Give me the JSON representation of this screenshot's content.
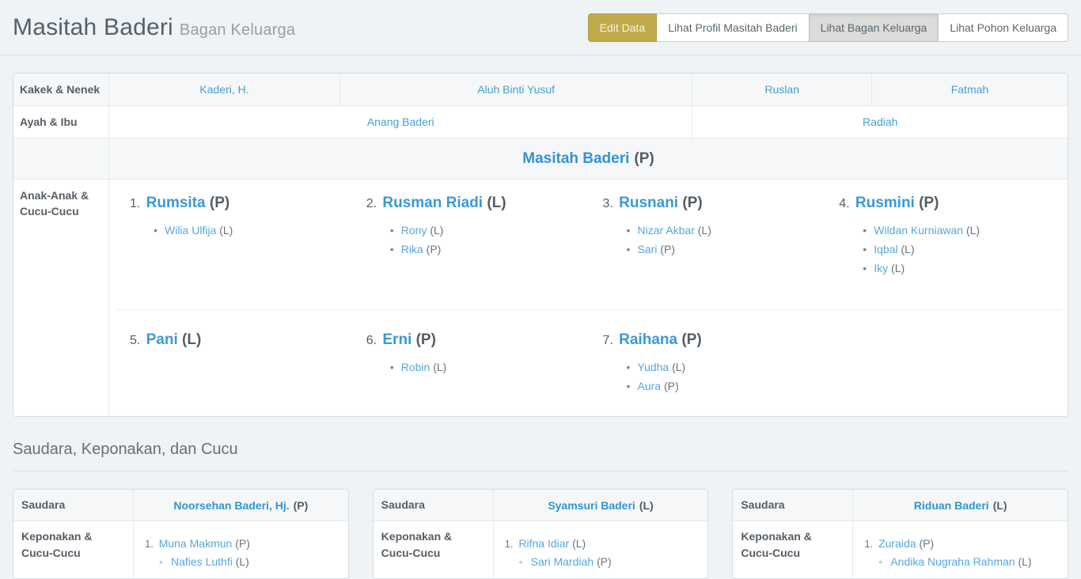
{
  "header": {
    "title": "Masitah Baderi",
    "subtitle": "Bagan Keluarga",
    "buttons": [
      {
        "label": "Edit Data",
        "style": "gold"
      },
      {
        "label": "Lihat Profil Masitah Baderi",
        "style": "default"
      },
      {
        "label": "Lihat Bagan Keluarga",
        "style": "active"
      },
      {
        "label": "Lihat Pohon Keluarga",
        "style": "default"
      }
    ]
  },
  "chart": {
    "labels": {
      "grandparents": "Kakek & Nenek",
      "parents": "Ayah & Ibu",
      "children": "Anak-Anak & Cucu-Cucu"
    },
    "grandparents": [
      "Kaderi, H.",
      "Aluh Binti Yusuf",
      "Ruslan",
      "Fatmah"
    ],
    "parents": [
      "Anang Baderi",
      "Radiah"
    ],
    "self": {
      "name": "Masitah Baderi",
      "gender": "(P)"
    },
    "children": [
      {
        "num": "1.",
        "name": "Rumsita",
        "gender": "(P)",
        "grandchildren": [
          {
            "name": "Wilia Ulfija",
            "gender": "(L)"
          }
        ]
      },
      {
        "num": "2.",
        "name": "Rusman Riadi",
        "gender": "(L)",
        "grandchildren": [
          {
            "name": "Rony",
            "gender": "(L)"
          },
          {
            "name": "Rika",
            "gender": "(P)"
          }
        ]
      },
      {
        "num": "3.",
        "name": "Rusnani",
        "gender": "(P)",
        "grandchildren": [
          {
            "name": "Nizar Akbar",
            "gender": "(L)"
          },
          {
            "name": "Sari",
            "gender": "(P)"
          }
        ]
      },
      {
        "num": "4.",
        "name": "Rusmini",
        "gender": "(P)",
        "grandchildren": [
          {
            "name": "Wildan Kurniawan",
            "gender": "(L)"
          },
          {
            "name": "Iqbal",
            "gender": "(L)"
          },
          {
            "name": "Iky",
            "gender": "(L)"
          }
        ]
      },
      {
        "num": "5.",
        "name": "Pani",
        "gender": "(L)",
        "grandchildren": []
      },
      {
        "num": "6.",
        "name": "Erni",
        "gender": "(P)",
        "grandchildren": [
          {
            "name": "Robin",
            "gender": "(L)"
          }
        ]
      },
      {
        "num": "7.",
        "name": "Raihana",
        "gender": "(P)",
        "grandchildren": [
          {
            "name": "Yudha",
            "gender": "(L)"
          },
          {
            "name": "Aura",
            "gender": "(P)"
          }
        ]
      }
    ]
  },
  "siblings": {
    "title": "Saudara, Keponakan, dan Cucu",
    "row1_label": "Saudara",
    "row2_label": "Keponakan & Cucu-Cucu",
    "cards": [
      {
        "name": "Noorsehan Baderi, Hj.",
        "gender": "(P)",
        "nephews": [
          {
            "num": "1.",
            "name": "Muna Makmun",
            "gender": "(P)",
            "children": [
              {
                "name": "Nafies Luthfi",
                "gender": "(L)"
              }
            ]
          }
        ]
      },
      {
        "name": "Syamsuri Baderi",
        "gender": "(L)",
        "nephews": [
          {
            "num": "1.",
            "name": "Rifna Idiar",
            "gender": "(L)",
            "children": [
              {
                "name": "Sari Mardiah",
                "gender": "(P)"
              }
            ]
          }
        ]
      },
      {
        "name": "Riduan Baderi",
        "gender": "(L)",
        "nephews": [
          {
            "num": "1.",
            "name": "Zuraida",
            "gender": "(P)",
            "children": [
              {
                "name": "Andika Nugraha Rahman",
                "gender": "(L)"
              }
            ]
          }
        ]
      }
    ]
  },
  "colors": {
    "page_background": "#eff3f5",
    "accent_link": "#46a0d5",
    "accent_link_bold": "#3095d4",
    "gold_button": "#c0aa4a",
    "active_button": "#dcdcdc",
    "stripe_row": "#f6f7f8"
  }
}
